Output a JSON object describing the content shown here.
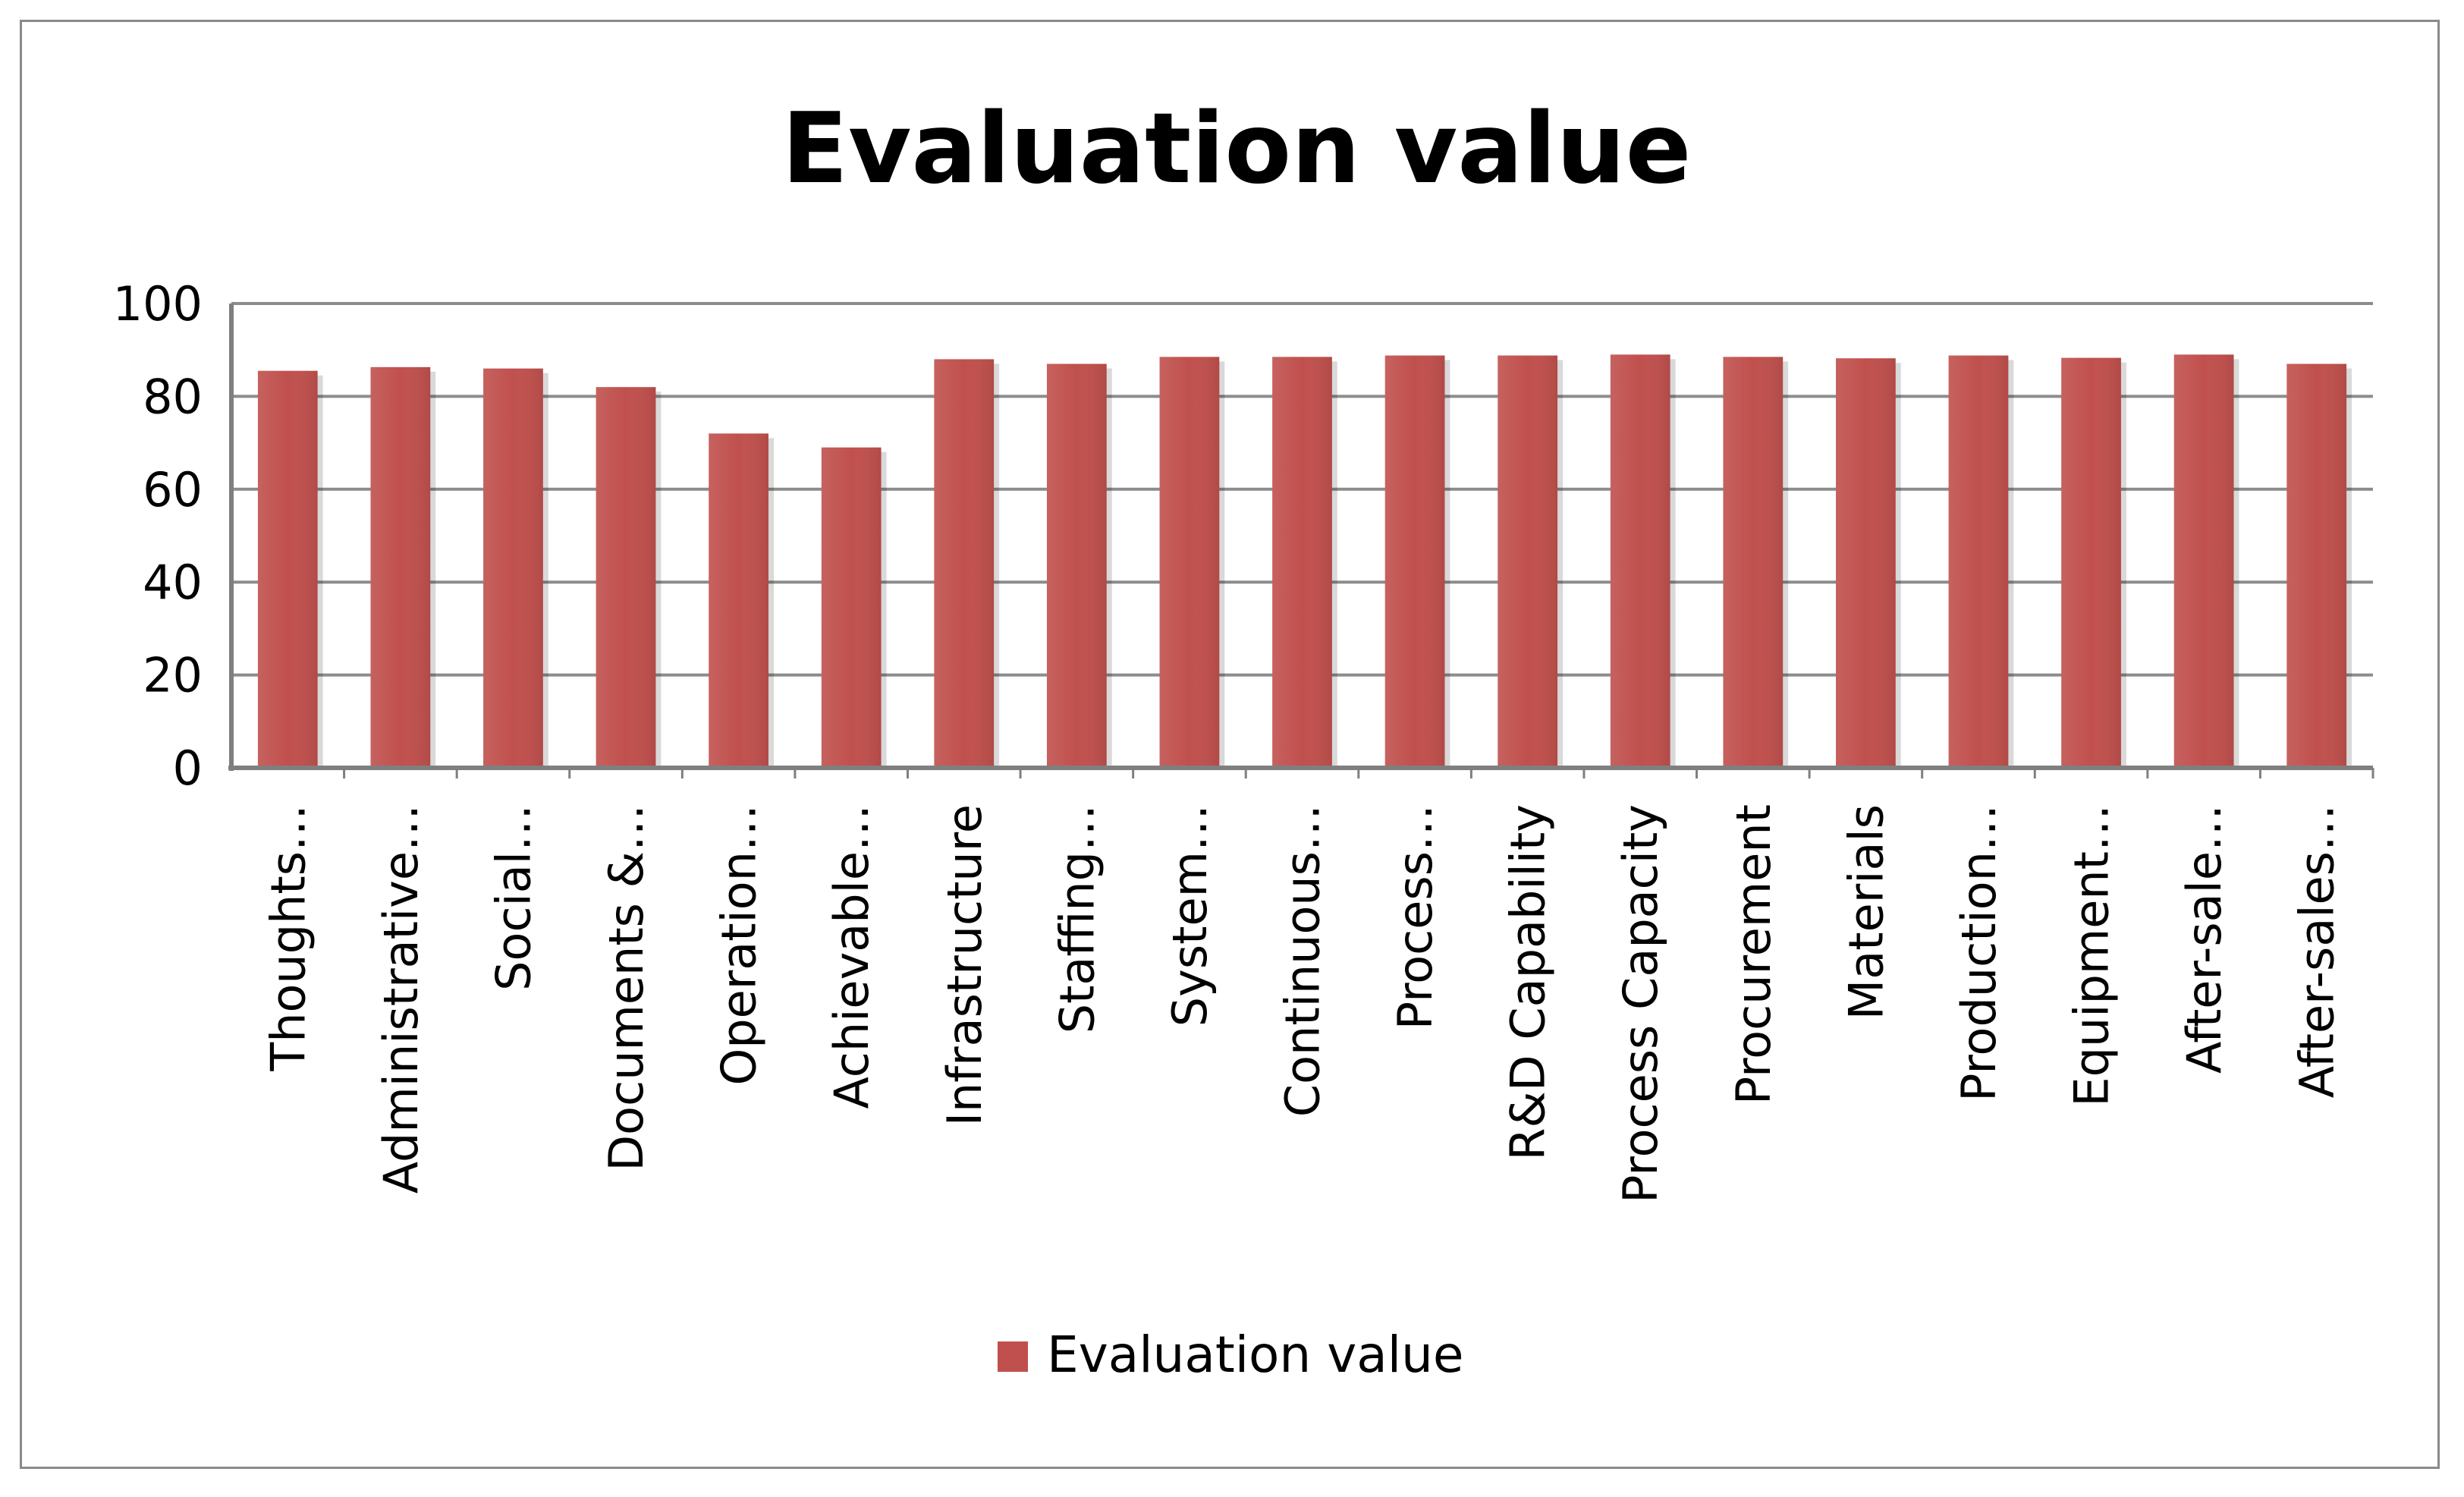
{
  "chart_data": {
    "type": "bar",
    "title": "Evaluation value",
    "xlabel": "",
    "ylabel": "",
    "ylim": [
      0,
      100
    ],
    "yticks": [
      0,
      20,
      40,
      60,
      80,
      100
    ],
    "grid": true,
    "legend_position": "bottom",
    "categories": [
      "Thoughts…",
      "Administrative…",
      "Social…",
      "Documents &…",
      "Operation…",
      "Achievable…",
      "Infrastructure",
      "Staffing…",
      "System…",
      "Continuous…",
      "Process…",
      "R&D Capability",
      "Process Capacity",
      "Procurement",
      "Materials",
      "Production…",
      "Equipment…",
      "After-sale…",
      "After-sales…"
    ],
    "series": [
      {
        "name": "Evaluation value",
        "color": "#c0504d",
        "values": [
          85.5,
          86.3,
          86,
          82,
          72,
          69,
          88,
          87,
          88.5,
          88.5,
          88.8,
          88.8,
          89,
          88.5,
          88.2,
          88.8,
          88.3,
          89,
          87
        ]
      }
    ]
  }
}
